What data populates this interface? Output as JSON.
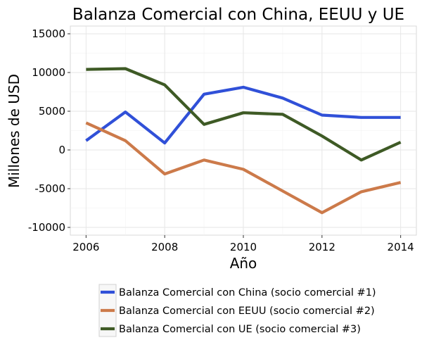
{
  "chart_data": {
    "type": "line",
    "title": "Balanza Comercial con China, EEUU y UE",
    "xlabel": "Año",
    "ylabel": "Millones de USD",
    "xlim": [
      2005.6,
      2014.4
    ],
    "ylim": [
      -11000,
      16000
    ],
    "x_ticks": [
      2006,
      2008,
      2010,
      2012,
      2014
    ],
    "x_tick_labels": [
      "2006",
      "2008",
      "2010",
      "2012",
      "2014"
    ],
    "y_ticks": [
      -10000,
      -5000,
      0,
      5000,
      10000,
      15000
    ],
    "y_tick_labels": [
      "-10000",
      "-5000",
      "0",
      "5000",
      "10000",
      "15000"
    ],
    "x": [
      2006,
      2007,
      2008,
      2009,
      2010,
      2011,
      2012,
      2013,
      2014
    ],
    "grid": true,
    "legend_position": "bottom",
    "series": [
      {
        "name": "Balanza Comercial con China (socio comercial #1)",
        "color": "#3050d8",
        "values": [
          1200,
          4900,
          900,
          7200,
          8100,
          6700,
          4500,
          4200,
          4200
        ]
      },
      {
        "name": "Balanza Comercial con EEUU (socio comercial #2)",
        "color": "#cc7a4a",
        "values": [
          3500,
          1200,
          -3100,
          -1300,
          -2500,
          -5300,
          -8100,
          -5400,
          -4200
        ]
      },
      {
        "name": "Balanza Comercial con UE (socio comercial #3)",
        "color": "#3e5a25",
        "values": [
          10400,
          10500,
          8400,
          3300,
          4800,
          4600,
          1800,
          -1300,
          1000
        ]
      }
    ]
  }
}
